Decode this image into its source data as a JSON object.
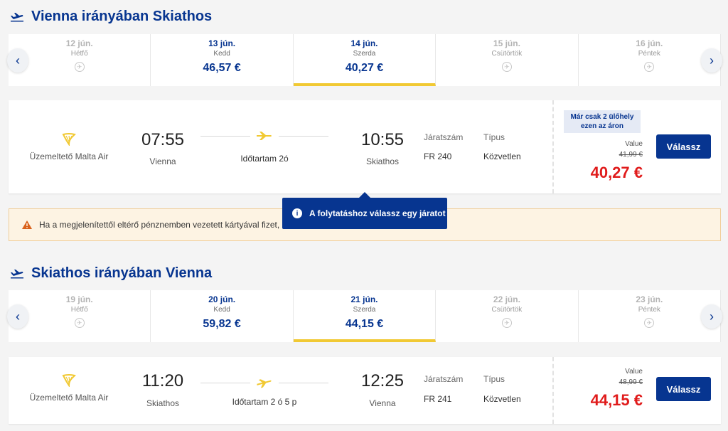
{
  "outbound": {
    "title": "Vienna irányában Skiathos",
    "dates": [
      {
        "date": "12 jún.",
        "day": "Hétfő",
        "price": null
      },
      {
        "date": "13 jún.",
        "day": "Kedd",
        "price": "46,57 €"
      },
      {
        "date": "14 jún.",
        "day": "Szerda",
        "price": "40,27 €",
        "selected": true
      },
      {
        "date": "15 jún.",
        "day": "Csütörtök",
        "price": null
      },
      {
        "date": "16 jún.",
        "day": "Péntek",
        "price": null
      }
    ],
    "flight": {
      "operator": "Üzemeltető Malta Air",
      "dep_time": "07:55",
      "dep_city": "Vienna",
      "duration": "Időtartam 2ó",
      "arr_time": "10:55",
      "arr_city": "Skiathos",
      "flight_no_label": "Járatszám",
      "flight_no": "FR 240",
      "type_label": "Típus",
      "type": "Közvetlen",
      "seats_note": "Már csak 2 ülőhely ezen az áron",
      "fare_label": "Value",
      "old_price": "41,99 €",
      "price": "40,27 €",
      "select_label": "Válassz"
    }
  },
  "warning": {
    "text": "Ha a megjelenítettől eltérő pénznemben vezetett kártyával fizet, a"
  },
  "tooltip": {
    "text": "A folytatáshoz válassz egy járatot"
  },
  "inbound": {
    "title": "Skiathos irányában Vienna",
    "dates": [
      {
        "date": "19 jún.",
        "day": "Hétfő",
        "price": null
      },
      {
        "date": "20 jún.",
        "day": "Kedd",
        "price": "59,82 €"
      },
      {
        "date": "21 jún.",
        "day": "Szerda",
        "price": "44,15 €",
        "selected": true
      },
      {
        "date": "22 jún.",
        "day": "Csütörtök",
        "price": null
      },
      {
        "date": "23 jún.",
        "day": "Péntek",
        "price": null
      }
    ],
    "flight": {
      "operator": "Üzemeltető Malta Air",
      "dep_time": "11:20",
      "dep_city": "Skiathos",
      "duration": "Időtartam 2 ó 5 p",
      "arr_time": "12:25",
      "arr_city": "Vienna",
      "flight_no_label": "Járatszám",
      "flight_no": "FR 241",
      "type_label": "Típus",
      "type": "Közvetlen",
      "fare_label": "Value",
      "old_price": "48,99 €",
      "price": "44,15 €",
      "select_label": "Válassz"
    }
  },
  "colors": {
    "brand": "#073590",
    "accent": "#f1c933",
    "price": "#e01b1b"
  }
}
